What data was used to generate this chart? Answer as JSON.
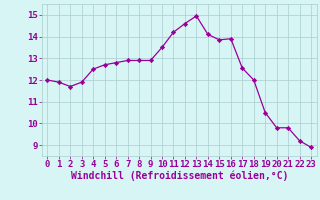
{
  "x": [
    0,
    1,
    2,
    3,
    4,
    5,
    6,
    7,
    8,
    9,
    10,
    11,
    12,
    13,
    14,
    15,
    16,
    17,
    18,
    19,
    20,
    21,
    22,
    23
  ],
  "y": [
    12.0,
    11.9,
    11.7,
    11.9,
    12.5,
    12.7,
    12.8,
    12.9,
    12.9,
    12.9,
    13.5,
    14.2,
    14.6,
    14.95,
    14.1,
    13.85,
    13.9,
    12.55,
    12.0,
    10.5,
    9.8,
    9.8,
    9.2,
    8.9
  ],
  "line_color": "#990099",
  "marker": "D",
  "marker_size": 2.2,
  "bg_color": "#d8f5f5",
  "grid_color": "#aacccc",
  "xlabel": "Windchill (Refroidissement éolien,°C)",
  "xlabel_color": "#990099",
  "tick_color": "#990099",
  "ylim": [
    8.5,
    15.5
  ],
  "xlim": [
    -0.5,
    23.5
  ],
  "yticks": [
    9,
    10,
    11,
    12,
    13,
    14,
    15
  ],
  "xticks": [
    0,
    1,
    2,
    3,
    4,
    5,
    6,
    7,
    8,
    9,
    10,
    11,
    12,
    13,
    14,
    15,
    16,
    17,
    18,
    19,
    20,
    21,
    22,
    23
  ],
  "tick_fontsize": 6.5,
  "xlabel_fontsize": 7.0,
  "linewidth": 0.9
}
